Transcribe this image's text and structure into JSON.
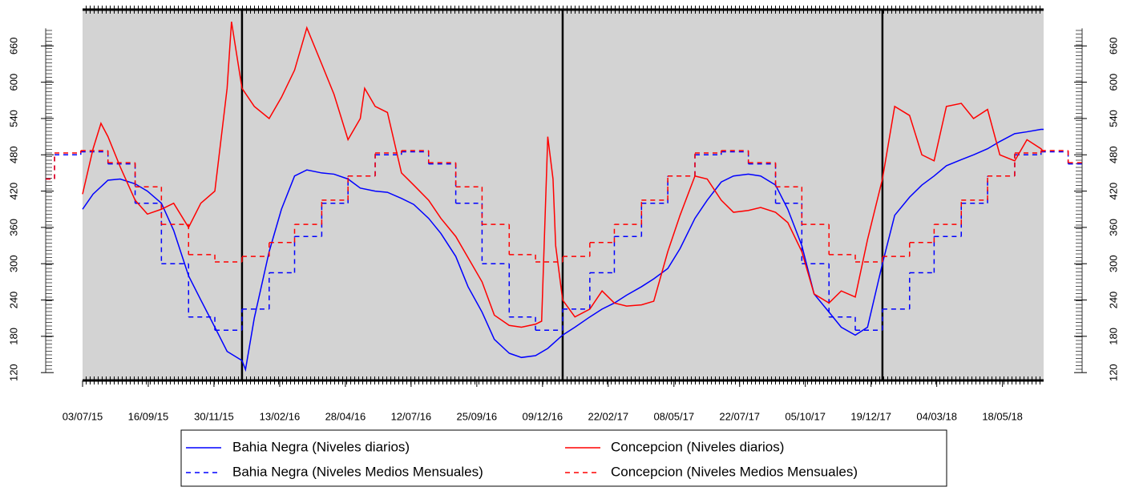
{
  "chart_data": {
    "type": "line",
    "xlim": [
      "2015-07-03",
      "2018-07-04"
    ],
    "ylim": [
      107,
      720
    ],
    "yticks": [
      120,
      180,
      240,
      300,
      360,
      420,
      480,
      540,
      600,
      660
    ],
    "xticks": [
      {
        "value": "2015-07-03",
        "label": "03/07/15"
      },
      {
        "value": "2015-09-16",
        "label": "16/09/15"
      },
      {
        "value": "2015-11-30",
        "label": "30/11/15"
      },
      {
        "value": "2016-02-13",
        "label": "13/02/16"
      },
      {
        "value": "2016-04-28",
        "label": "28/04/16"
      },
      {
        "value": "2016-07-12",
        "label": "12/07/16"
      },
      {
        "value": "2016-09-25",
        "label": "25/09/16"
      },
      {
        "value": "2016-12-09",
        "label": "09/12/16"
      },
      {
        "value": "2017-02-22",
        "label": "22/02/17"
      },
      {
        "value": "2017-05-08",
        "label": "08/05/17"
      },
      {
        "value": "2017-07-22",
        "label": "22/07/17"
      },
      {
        "value": "2017-10-05",
        "label": "05/10/17"
      },
      {
        "value": "2017-12-19",
        "label": "19/12/17"
      },
      {
        "value": "2018-03-04",
        "label": "04/03/18"
      },
      {
        "value": "2018-05-18",
        "label": "18/05/18"
      }
    ],
    "year_lines": [
      "2016-01-01",
      "2017-01-01",
      "2018-01-01"
    ],
    "background": "#d3d3d3",
    "series": [
      {
        "name": "Bahia Negra (Niveles diarios)",
        "color": "#0000ff",
        "dash": false,
        "step": false,
        "x": [
          "2015-07-03",
          "2015-07-15",
          "2015-08-01",
          "2015-08-15",
          "2015-09-01",
          "2015-09-15",
          "2015-10-01",
          "2015-10-15",
          "2015-11-01",
          "2015-11-15",
          "2015-12-01",
          "2015-12-15",
          "2016-01-01",
          "2016-01-05",
          "2016-01-15",
          "2016-02-01",
          "2016-02-15",
          "2016-03-01",
          "2016-03-15",
          "2016-04-01",
          "2016-04-15",
          "2016-05-01",
          "2016-05-15",
          "2016-06-01",
          "2016-06-15",
          "2016-07-01",
          "2016-07-15",
          "2016-08-01",
          "2016-08-15",
          "2016-09-01",
          "2016-09-15",
          "2016-10-01",
          "2016-10-15",
          "2016-11-01",
          "2016-11-15",
          "2016-12-01",
          "2016-12-15",
          "2017-01-01",
          "2017-01-15",
          "2017-02-01",
          "2017-02-15",
          "2017-03-01",
          "2017-03-15",
          "2017-04-01",
          "2017-04-15",
          "2017-05-01",
          "2017-05-15",
          "2017-06-01",
          "2017-06-15",
          "2017-07-01",
          "2017-07-15",
          "2017-08-01",
          "2017-08-15",
          "2017-09-01",
          "2017-09-15",
          "2017-10-01",
          "2017-10-15",
          "2017-11-01",
          "2017-11-15",
          "2017-12-01",
          "2017-12-15",
          "2018-01-01",
          "2018-01-15",
          "2018-02-01",
          "2018-02-15",
          "2018-03-01",
          "2018-03-15",
          "2018-04-01",
          "2018-04-15",
          "2018-05-01",
          "2018-05-15",
          "2018-06-01",
          "2018-06-15",
          "2018-07-01",
          "2018-07-04"
        ],
        "values": [
          390,
          415,
          438,
          440,
          432,
          420,
          400,
          355,
          280,
          240,
          195,
          155,
          140,
          125,
          210,
          320,
          390,
          445,
          455,
          450,
          448,
          440,
          425,
          420,
          418,
          408,
          398,
          375,
          350,
          312,
          262,
          220,
          175,
          152,
          145,
          148,
          160,
          182,
          195,
          212,
          225,
          235,
          248,
          262,
          275,
          292,
          325,
          375,
          405,
          435,
          445,
          448,
          445,
          430,
          390,
          330,
          250,
          220,
          195,
          182,
          195,
          300,
          380,
          410,
          430,
          445,
          462,
          472,
          480,
          490,
          502,
          515,
          518,
          522,
          522
        ]
      },
      {
        "name": "Bahia Negra (Niveles Medios Mensuales)",
        "color": "#0000ff",
        "dash": true,
        "step": true,
        "x": [
          "2015-05-22",
          "2015-06-01",
          "2015-07-01",
          "2015-08-01",
          "2015-09-01",
          "2015-10-01",
          "2015-11-01",
          "2015-12-01",
          "2016-01-01",
          "2016-02-01",
          "2016-03-01",
          "2016-04-01",
          "2016-05-01",
          "2016-06-01",
          "2016-07-01",
          "2016-08-01",
          "2016-09-01",
          "2016-10-01",
          "2016-11-01",
          "2016-12-01",
          "2017-01-01",
          "2017-02-01",
          "2017-03-01",
          "2017-04-01",
          "2017-05-01",
          "2017-06-01",
          "2017-07-01",
          "2017-08-01",
          "2017-09-01",
          "2017-10-01",
          "2017-11-01",
          "2017-12-01",
          "2018-01-01",
          "2018-02-01",
          "2018-03-01",
          "2018-04-01",
          "2018-05-01",
          "2018-06-01",
          "2018-07-01",
          "2018-08-01"
        ],
        "values": [
          440,
          480,
          485,
          465,
          400,
          300,
          212,
          190,
          225,
          285,
          345,
          400,
          445,
          480,
          485,
          465,
          400,
          300,
          212,
          190,
          225,
          285,
          345,
          400,
          445,
          480,
          485,
          465,
          400,
          300,
          212,
          190,
          225,
          285,
          345,
          400,
          445,
          480,
          485,
          465
        ]
      },
      {
        "name": "Concepcion (Niveles diarios)",
        "color": "#ff0000",
        "dash": false,
        "step": false,
        "x": [
          "2015-07-03",
          "2015-07-15",
          "2015-07-24",
          "2015-08-01",
          "2015-08-15",
          "2015-09-01",
          "2015-09-15",
          "2015-10-01",
          "2015-10-15",
          "2015-11-01",
          "2015-11-15",
          "2015-12-01",
          "2015-12-15",
          "2015-12-20",
          "2016-01-01",
          "2016-01-15",
          "2016-02-01",
          "2016-02-15",
          "2016-03-01",
          "2016-03-15",
          "2016-04-01",
          "2016-04-15",
          "2016-05-01",
          "2016-05-15",
          "2016-05-20",
          "2016-06-01",
          "2016-06-15",
          "2016-07-01",
          "2016-07-15",
          "2016-08-01",
          "2016-08-15",
          "2016-09-01",
          "2016-09-15",
          "2016-10-01",
          "2016-10-15",
          "2016-11-01",
          "2016-11-15",
          "2016-12-01",
          "2016-12-08",
          "2016-12-15",
          "2016-12-21",
          "2016-12-24",
          "2017-01-01",
          "2017-01-15",
          "2017-02-01",
          "2017-02-15",
          "2017-03-01",
          "2017-03-15",
          "2017-04-01",
          "2017-04-15",
          "2017-05-01",
          "2017-05-15",
          "2017-06-01",
          "2017-06-15",
          "2017-07-01",
          "2017-07-15",
          "2017-08-01",
          "2017-08-15",
          "2017-09-01",
          "2017-09-15",
          "2017-10-01",
          "2017-10-15",
          "2017-11-01",
          "2017-11-15",
          "2017-12-01",
          "2017-12-15",
          "2018-01-01",
          "2018-01-15",
          "2018-02-01",
          "2018-02-15",
          "2018-03-01",
          "2018-03-15",
          "2018-04-01",
          "2018-04-15",
          "2018-05-01",
          "2018-05-15",
          "2018-06-01",
          "2018-06-15",
          "2018-07-01",
          "2018-07-04"
        ],
        "values": [
          415,
          490,
          532,
          510,
          460,
          405,
          382,
          390,
          400,
          360,
          400,
          420,
          590,
          700,
          590,
          560,
          540,
          575,
          620,
          690,
          630,
          580,
          505,
          540,
          590,
          560,
          550,
          450,
          430,
          405,
          375,
          345,
          310,
          270,
          215,
          198,
          195,
          200,
          205,
          510,
          440,
          330,
          240,
          212,
          225,
          255,
          235,
          230,
          232,
          238,
          320,
          380,
          445,
          440,
          405,
          385,
          388,
          393,
          385,
          368,
          320,
          250,
          235,
          255,
          245,
          340,
          440,
          560,
          545,
          480,
          470,
          560,
          565,
          540,
          555,
          480,
          470,
          505,
          490,
          485
        ]
      },
      {
        "name": "Concepcion (Niveles Medios Mensuales)",
        "color": "#ff0000",
        "dash": true,
        "step": true,
        "x": [
          "2015-05-22",
          "2015-06-01",
          "2015-07-01",
          "2015-08-01",
          "2015-09-01",
          "2015-10-01",
          "2015-11-01",
          "2015-12-01",
          "2016-01-01",
          "2016-02-01",
          "2016-03-01",
          "2016-04-01",
          "2016-05-01",
          "2016-06-01",
          "2016-07-01",
          "2016-08-01",
          "2016-09-01",
          "2016-10-01",
          "2016-11-01",
          "2016-12-01",
          "2017-01-01",
          "2017-02-01",
          "2017-03-01",
          "2017-04-01",
          "2017-05-01",
          "2017-06-01",
          "2017-07-01",
          "2017-08-01",
          "2017-09-01",
          "2017-10-01",
          "2017-11-01",
          "2017-12-01",
          "2018-01-01",
          "2018-02-01",
          "2018-03-01",
          "2018-04-01",
          "2018-05-01",
          "2018-06-01",
          "2018-07-01",
          "2018-08-01"
        ],
        "values": [
          440,
          483,
          487,
          467,
          427,
          365,
          315,
          303,
          312,
          335,
          365,
          405,
          445,
          483,
          487,
          467,
          427,
          365,
          315,
          303,
          312,
          335,
          365,
          405,
          445,
          483,
          487,
          467,
          427,
          365,
          315,
          303,
          312,
          335,
          365,
          405,
          445,
          483,
          487,
          467
        ]
      }
    ]
  }
}
